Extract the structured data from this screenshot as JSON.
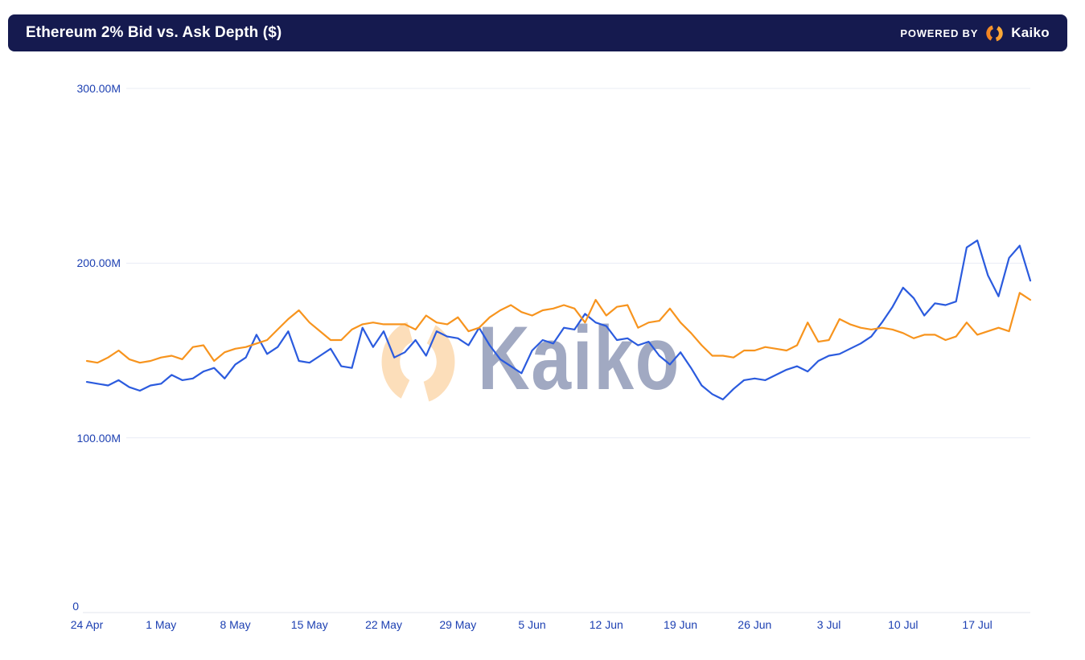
{
  "header": {
    "title": "Ethereum 2% Bid vs. Ask Depth ($)",
    "powered_by": "POWERED BY",
    "brand": "Kaiko",
    "bg_color": "#151A4F",
    "text_color": "#FFFFFF"
  },
  "watermark": {
    "text": "Kaiko"
  },
  "chart_data": {
    "type": "line",
    "title": "Ethereum 2% Bid vs. Ask Depth ($)",
    "unit": "USD millions",
    "legend": "none",
    "grid": "horizontal-only",
    "date_range": {
      "start": "24 Apr",
      "end": "22 Jul",
      "frequency": "daily",
      "n_points": 90
    },
    "x_ticks": [
      "24 Apr",
      "1 May",
      "8 May",
      "15 May",
      "22 May",
      "29 May",
      "5 Jun",
      "12 Jun",
      "19 Jun",
      "26 Jun",
      "3 Jul",
      "10 Jul",
      "17 Jul"
    ],
    "x_tick_interval_days": 7,
    "y_ticks": [
      {
        "label": "300.00M",
        "value": 300
      },
      {
        "label": "200.00M",
        "value": 200
      },
      {
        "label": "100.00M",
        "value": 100
      },
      {
        "label": "0",
        "value": 0
      }
    ],
    "ylim": [
      0,
      300
    ],
    "colors": {
      "grid_line": "#EAECF4",
      "zero_line": "#E2E4EC",
      "tick_label": "#1D40B2",
      "watermark_mark": "#F7931E",
      "watermark_text": "#9AA2BD"
    },
    "series": [
      {
        "name": "Bid Depth",
        "color": "#2B5BDE",
        "values": [
          132,
          131,
          130,
          133,
          129,
          127,
          130,
          131,
          136,
          133,
          134,
          138,
          140,
          134,
          142,
          146,
          159,
          148,
          152,
          161,
          144,
          143,
          147,
          151,
          141,
          140,
          163,
          152,
          161,
          146,
          149,
          156,
          147,
          161,
          158,
          157,
          153,
          163,
          153,
          145,
          141,
          137,
          150,
          156,
          154,
          163,
          162,
          171,
          166,
          164,
          156,
          157,
          153,
          155,
          147,
          142,
          149,
          140,
          130,
          125,
          122,
          128,
          133,
          134,
          133,
          136,
          139,
          141,
          138,
          144,
          147,
          148,
          151,
          154,
          158,
          166,
          175,
          186,
          180,
          170,
          177,
          176,
          178,
          209,
          213,
          193,
          181,
          203,
          210,
          190
        ]
      },
      {
        "name": "Ask Depth",
        "color": "#F7941E",
        "values": [
          144,
          143,
          146,
          150,
          145,
          143,
          144,
          146,
          147,
          145,
          152,
          153,
          144,
          149,
          151,
          152,
          154,
          156,
          162,
          168,
          173,
          166,
          161,
          156,
          156,
          162,
          165,
          166,
          165,
          165,
          165,
          162,
          170,
          166,
          165,
          169,
          161,
          163,
          169,
          173,
          176,
          172,
          170,
          173,
          174,
          176,
          174,
          166,
          179,
          170,
          175,
          176,
          163,
          166,
          167,
          174,
          166,
          160,
          153,
          147,
          147,
          146,
          150,
          150,
          152,
          151,
          150,
          153,
          166,
          155,
          156,
          168,
          165,
          163,
          162,
          163,
          162,
          160,
          157,
          159,
          159,
          156,
          158,
          166,
          159,
          161,
          163,
          161,
          183,
          179
        ]
      }
    ]
  }
}
